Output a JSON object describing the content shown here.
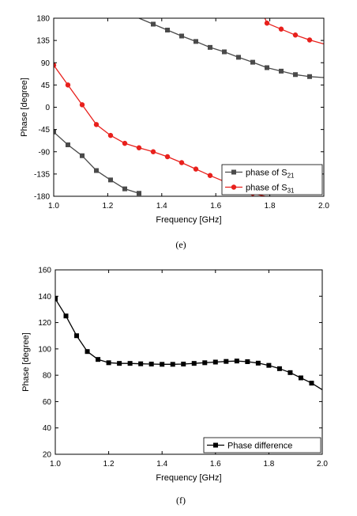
{
  "chart_data": [
    {
      "type": "line",
      "caption": "(e)",
      "xlabel": "Frequency [GHz]",
      "ylabel": "Phase [degree]",
      "xlim": [
        1.0,
        2.0
      ],
      "ylim": [
        -180,
        180
      ],
      "x_ticks": [
        1.0,
        1.2,
        1.4,
        1.6,
        1.8,
        2.0
      ],
      "x_tick_labels": [
        "1.0",
        "1.2",
        "1.4",
        "1.6",
        "1.8",
        "2.0"
      ],
      "y_ticks": [
        -180,
        -135,
        -90,
        -45,
        0,
        45,
        90,
        135,
        180
      ],
      "y_tick_labels": [
        "-180",
        "-135",
        "-90",
        "-45",
        "0",
        "45",
        "90",
        "135",
        "180"
      ],
      "legend_position": "bottom-right",
      "series": [
        {
          "name": "phase of S21",
          "legend_label": {
            "prefix": "phase of S",
            "subscript": "21"
          },
          "color": "#4a4a4a",
          "marker": "square",
          "segments": [
            {
              "x": [
                1.0,
                1.0526,
                1.1053,
                1.1579,
                1.2105,
                1.2632,
                1.3158,
                1.323
              ],
              "y": [
                -50,
                -76,
                -98,
                -128,
                -147,
                -165,
                -174,
                -176
              ]
            },
            {
              "x": [
                1.323,
                1.3158,
                1.3684,
                1.4211,
                1.4737,
                1.5263,
                1.5789,
                1.6316,
                1.6842,
                1.7368,
                1.7895,
                1.8421,
                1.8947,
                1.9474,
                2.0
              ],
              "y": [
                180,
                180,
                168,
                156,
                144,
                133,
                121,
                112,
                101,
                91,
                80,
                73,
                66,
                62,
                60
              ]
            }
          ],
          "markers": {
            "x": [
              1.0,
              1.0526,
              1.1053,
              1.1579,
              1.2105,
              1.2632,
              1.3158,
              1.3684,
              1.4211,
              1.4737,
              1.5263,
              1.5789,
              1.6316,
              1.6842,
              1.7368,
              1.7895,
              1.8421,
              1.8947,
              1.9474
            ],
            "y": [
              -50,
              -76,
              -98,
              -128,
              -147,
              -165,
              -174,
              168,
              156,
              144,
              133,
              121,
              112,
              101,
              91,
              80,
              73,
              66,
              62
            ]
          }
        },
        {
          "name": "phase of S31",
          "legend_label": {
            "prefix": "phase of S",
            "subscript": "31"
          },
          "color": "#e8201c",
          "marker": "circle",
          "segments": [
            {
              "x": [
                1.0,
                1.0526,
                1.1053,
                1.1579,
                1.2105,
                1.2632,
                1.3158,
                1.3684,
                1.4211,
                1.4737,
                1.5263,
                1.5789,
                1.6316,
                1.6842,
                1.7368,
                1.782
              ],
              "y": [
                85,
                45,
                5,
                -35,
                -57,
                -73,
                -82,
                -90,
                -100,
                -112,
                -125,
                -138,
                -150,
                -162,
                -174,
                -180
              ]
            },
            {
              "x": [
                1.782,
                1.7895,
                1.8421,
                1.8947,
                1.9474,
                2.0
              ],
              "y": [
                180,
                170,
                158,
                146,
                136,
                128
              ]
            }
          ],
          "markers": {
            "x": [
              1.0,
              1.0526,
              1.1053,
              1.1579,
              1.2105,
              1.2632,
              1.3158,
              1.3684,
              1.4211,
              1.4737,
              1.5263,
              1.5789,
              1.6316,
              1.6842,
              1.7368,
              1.7895,
              1.8421,
              1.8947,
              1.9474
            ],
            "y": [
              85,
              45,
              5,
              -35,
              -57,
              -73,
              -82,
              -90,
              -100,
              -112,
              -125,
              -138,
              -150,
              -162,
              -174,
              170,
              158,
              146,
              136
            ]
          }
        }
      ]
    },
    {
      "type": "line",
      "caption": "(f)",
      "xlabel": "Frequency [GHz]",
      "ylabel": "Phase [degree]",
      "xlim": [
        1.0,
        2.0
      ],
      "ylim": [
        20,
        160
      ],
      "x_ticks": [
        1.0,
        1.2,
        1.4,
        1.6,
        1.8,
        2.0
      ],
      "x_tick_labels": [
        "1.0",
        "1.2",
        "1.4",
        "1.6",
        "1.8",
        "2.0"
      ],
      "y_ticks": [
        20,
        40,
        60,
        80,
        100,
        120,
        140,
        160
      ],
      "y_tick_labels": [
        "20",
        "40",
        "60",
        "80",
        "100",
        "120",
        "140",
        "160"
      ],
      "legend_position": "bottom-right",
      "series": [
        {
          "name": "Phase difference",
          "color": "#000000",
          "marker": "square",
          "segments": [
            {
              "x": [
                1.0,
                1.04,
                1.08,
                1.12,
                1.16,
                1.2,
                1.24,
                1.28,
                1.32,
                1.36,
                1.4,
                1.44,
                1.48,
                1.52,
                1.56,
                1.6,
                1.64,
                1.68,
                1.72,
                1.76,
                1.8,
                1.84,
                1.88,
                1.92,
                1.96,
                2.0
              ],
              "y": [
                138,
                125,
                110,
                98,
                92,
                89.5,
                89,
                89,
                88.7,
                88.5,
                88.3,
                88.3,
                88.5,
                89,
                89.5,
                90,
                90.5,
                90.8,
                90.3,
                89.2,
                87.5,
                85,
                82,
                78,
                74,
                69
              ]
            }
          ],
          "markers": {
            "x": [
              1.0,
              1.04,
              1.08,
              1.12,
              1.16,
              1.2,
              1.24,
              1.28,
              1.32,
              1.36,
              1.4,
              1.44,
              1.48,
              1.52,
              1.56,
              1.6,
              1.64,
              1.68,
              1.72,
              1.76,
              1.8,
              1.84,
              1.88,
              1.92,
              1.96
            ],
            "y": [
              138,
              125,
              110,
              98,
              92,
              89.5,
              89,
              89,
              88.7,
              88.5,
              88.3,
              88.3,
              88.5,
              89,
              89.5,
              90,
              90.5,
              90.8,
              90.3,
              89.2,
              87.5,
              85,
              82,
              78,
              74
            ]
          }
        }
      ]
    }
  ]
}
